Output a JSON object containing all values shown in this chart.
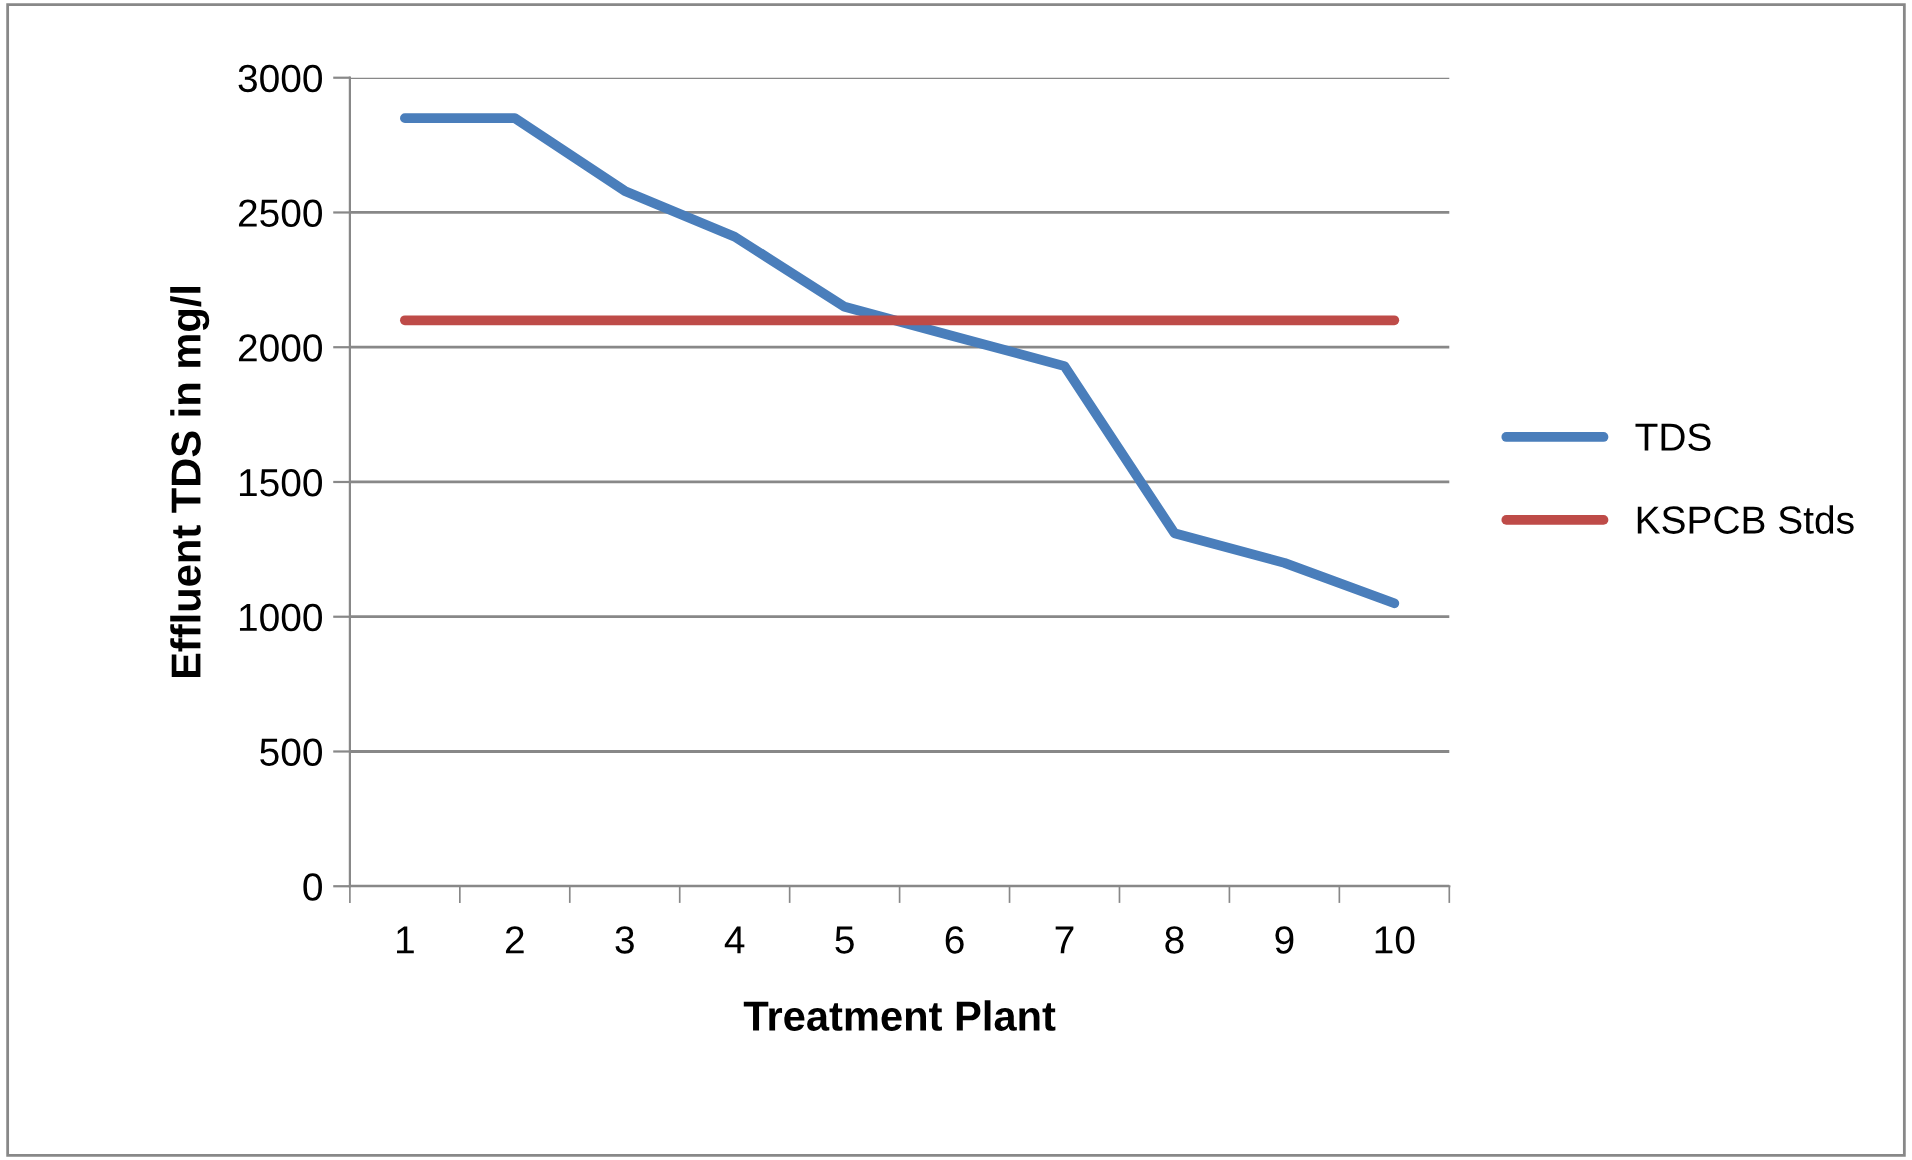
{
  "chart_data": {
    "type": "line",
    "xlabel": "Treatment Plant",
    "ylabel": "Effluent TDS in mg/l",
    "categories": [
      "1",
      "2",
      "3",
      "4",
      "5",
      "6",
      "7",
      "8",
      "9",
      "10"
    ],
    "series": [
      {
        "name": "TDS",
        "color": "#4a7ebb",
        "values": [
          2850,
          2850,
          2580,
          2410,
          2150,
          2040,
          1930,
          1310,
          1200,
          1050
        ]
      },
      {
        "name": "KSPCB Stds",
        "color": "#be4b48",
        "values": [
          2100,
          2100,
          2100,
          2100,
          2100,
          2100,
          2100,
          2100,
          2100,
          2100
        ]
      }
    ],
    "ylim": [
      0,
      3000
    ],
    "yticks": [
      0,
      500,
      1000,
      1500,
      2000,
      2500,
      3000
    ],
    "grid": "y",
    "legend": "right",
    "marker": "none",
    "line_style": "solid"
  }
}
